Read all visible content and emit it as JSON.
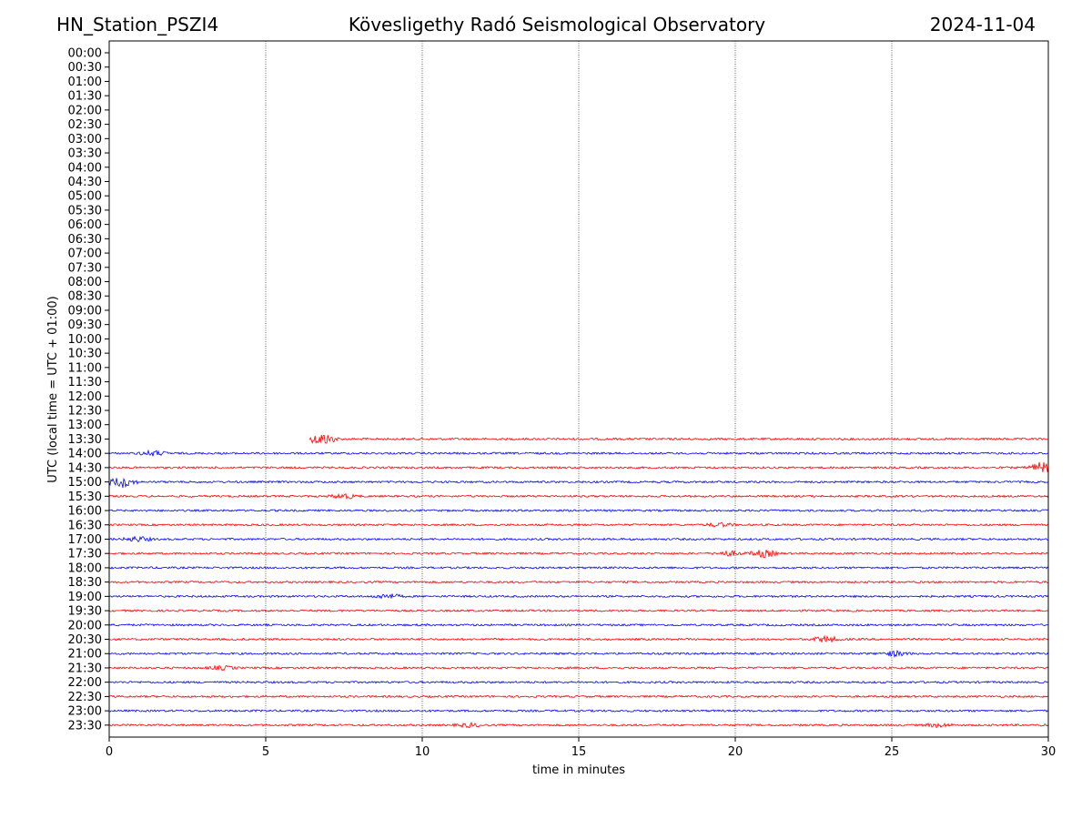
{
  "header": {
    "station": "HN_Station_PSZI4",
    "title": "Kövesligethy Radó Seismological Observatory",
    "date": "2024-11-04"
  },
  "chart_data": {
    "type": "line",
    "xlabel": "time in minutes",
    "ylabel": "UTC (local time = UTC + 01:00)",
    "xlim": [
      0,
      30
    ],
    "x_ticks": [
      "0",
      "5",
      "10",
      "15",
      "20",
      "25",
      "30"
    ],
    "x_tick_values": [
      0,
      5,
      10,
      15,
      20,
      25,
      30
    ],
    "vertical_grid": true,
    "rows": [
      "00:00",
      "00:30",
      "01:00",
      "01:30",
      "02:00",
      "02:30",
      "03:00",
      "03:30",
      "04:00",
      "04:30",
      "05:00",
      "05:30",
      "06:00",
      "06:30",
      "07:00",
      "07:30",
      "08:00",
      "08:30",
      "09:00",
      "09:30",
      "10:00",
      "10:30",
      "11:00",
      "11:30",
      "12:00",
      "12:30",
      "13:00",
      "13:30",
      "14:00",
      "14:30",
      "15:00",
      "15:30",
      "16:00",
      "16:30",
      "17:00",
      "17:30",
      "18:00",
      "18:30",
      "19:00",
      "19:30",
      "20:00",
      "20:30",
      "21:00",
      "21:30",
      "22:00",
      "22:30",
      "23:00",
      "23:30"
    ],
    "colors": {
      "odd_half_hour": "#ff0000",
      "even_hour": "#0000ff"
    },
    "traces": [
      {
        "row": "13:30",
        "start_minute": 6.4,
        "color": "#ff0000",
        "events": [
          {
            "minute": 6.8,
            "amplitude": 1.0
          }
        ]
      },
      {
        "row": "14:00",
        "start_minute": 0,
        "color": "#0000ff",
        "events": [
          {
            "minute": 1.4,
            "amplitude": 0.4
          }
        ]
      },
      {
        "row": "14:30",
        "start_minute": 0,
        "color": "#ff0000",
        "events": [
          {
            "minute": 29.8,
            "amplitude": 0.9
          }
        ]
      },
      {
        "row": "15:00",
        "start_minute": 0,
        "color": "#0000ff",
        "events": [
          {
            "minute": 0.4,
            "amplitude": 0.9
          }
        ]
      },
      {
        "row": "15:30",
        "start_minute": 0,
        "color": "#ff0000",
        "events": [
          {
            "minute": 7.5,
            "amplitude": 0.4
          }
        ]
      },
      {
        "row": "16:00",
        "start_minute": 0,
        "color": "#0000ff",
        "events": []
      },
      {
        "row": "16:30",
        "start_minute": 0,
        "color": "#ff0000",
        "events": [
          {
            "minute": 19.5,
            "amplitude": 0.3
          }
        ]
      },
      {
        "row": "17:00",
        "start_minute": 0,
        "color": "#0000ff",
        "events": [
          {
            "minute": 0.9,
            "amplitude": 0.4
          }
        ]
      },
      {
        "row": "17:30",
        "start_minute": 0,
        "color": "#ff0000",
        "events": [
          {
            "minute": 19.8,
            "amplitude": 0.4
          },
          {
            "minute": 20.9,
            "amplitude": 0.6
          }
        ]
      },
      {
        "row": "18:00",
        "start_minute": 0,
        "color": "#0000ff",
        "events": []
      },
      {
        "row": "18:30",
        "start_minute": 0,
        "color": "#ff0000",
        "events": []
      },
      {
        "row": "19:00",
        "start_minute": 0,
        "color": "#0000ff",
        "events": [
          {
            "minute": 8.9,
            "amplitude": 0.4
          }
        ]
      },
      {
        "row": "19:30",
        "start_minute": 0,
        "color": "#ff0000",
        "events": []
      },
      {
        "row": "20:00",
        "start_minute": 0,
        "color": "#0000ff",
        "events": []
      },
      {
        "row": "20:30",
        "start_minute": 0,
        "color": "#ff0000",
        "events": [
          {
            "minute": 22.9,
            "amplitude": 0.5
          }
        ]
      },
      {
        "row": "21:00",
        "start_minute": 0,
        "color": "#0000ff",
        "events": [
          {
            "minute": 25.1,
            "amplitude": 0.4
          }
        ]
      },
      {
        "row": "21:30",
        "start_minute": 0,
        "color": "#ff0000",
        "events": [
          {
            "minute": 3.6,
            "amplitude": 0.3
          }
        ]
      },
      {
        "row": "22:00",
        "start_minute": 0,
        "color": "#0000ff",
        "events": []
      },
      {
        "row": "22:30",
        "start_minute": 0,
        "color": "#ff0000",
        "events": []
      },
      {
        "row": "23:00",
        "start_minute": 0,
        "color": "#0000ff",
        "events": []
      },
      {
        "row": "23:30",
        "start_minute": 0,
        "color": "#ff0000",
        "events": [
          {
            "minute": 11.5,
            "amplitude": 0.3
          },
          {
            "minute": 26.5,
            "amplitude": 0.3
          }
        ]
      }
    ]
  }
}
